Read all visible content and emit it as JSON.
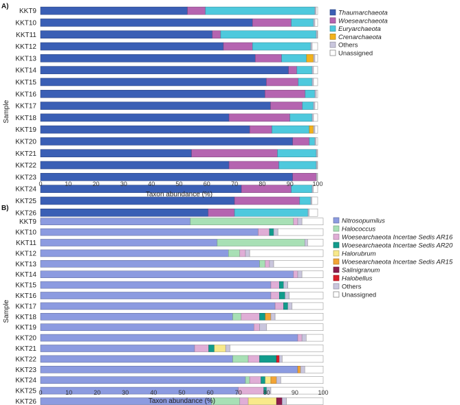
{
  "chart_data": [
    {
      "panel_label": "A)",
      "type": "bar",
      "orientation": "horizontal",
      "stacked": true,
      "xlabel": "Taxon abundance (%)",
      "ylabel": "Sample",
      "xlim": [
        0,
        100
      ],
      "xticks": [
        "0",
        "10",
        "20",
        "30",
        "40",
        "50",
        "60",
        "70",
        "80",
        "90",
        "100"
      ],
      "legend_position": "right",
      "categories": [
        "KKT9",
        "KKT10",
        "KKT11",
        "KKT12",
        "KKT13",
        "KKT14",
        "KKT15",
        "KKT16",
        "KKT17",
        "KKT18",
        "KKT19",
        "KKT20",
        "KKT21",
        "KKT22",
        "KKT23",
        "KKT24",
        "KKT25",
        "KKT26"
      ],
      "series": [
        {
          "name": "Thaumarchaeota",
          "italic": true,
          "color": "#3a5fb5",
          "values": [
            53,
            76.5,
            62,
            66,
            77.5,
            89.5,
            81.5,
            81,
            83,
            68,
            75.5,
            91,
            54.5,
            68,
            91,
            72.5,
            70,
            60.5
          ]
        },
        {
          "name": "Woesearchaeota",
          "italic": true,
          "color": "#b564b0",
          "values": [
            6.5,
            14,
            3,
            10.5,
            9.5,
            3,
            11.5,
            14.5,
            11.5,
            22,
            8,
            6,
            31,
            18,
            8.5,
            18,
            23.5,
            9.5
          ]
        },
        {
          "name": "Euryarchaeota",
          "italic": true,
          "color": "#4ec9dd",
          "values": [
            39.5,
            8,
            34.5,
            21,
            9,
            5.5,
            5,
            3.5,
            4,
            8,
            13.5,
            2,
            14,
            13.5,
            0,
            7.5,
            4,
            26.5
          ]
        },
        {
          "name": "Crenarchaeota",
          "italic": true,
          "color": "#f2b21c",
          "values": [
            0,
            0,
            0,
            0,
            2.5,
            0,
            0,
            0,
            0,
            0,
            1.5,
            0,
            0,
            0,
            0,
            0,
            0,
            0
          ]
        },
        {
          "name": "Others",
          "italic": false,
          "color": "#c9c6dd",
          "values": [
            0.4,
            0.5,
            0.4,
            0.5,
            0.5,
            0.5,
            0.5,
            0.5,
            0.5,
            0.5,
            0.5,
            0.4,
            0.3,
            0.3,
            0.3,
            0.4,
            0.4,
            0.4
          ]
        },
        {
          "name": "Unassigned",
          "italic": false,
          "color": "#ffffff",
          "values": [
            0.6,
            1,
            0.1,
            2,
            1,
            1.5,
            1.5,
            0.5,
            1,
            1.5,
            1,
            0.6,
            0.2,
            0.2,
            0.2,
            1.6,
            2.1,
            3.1
          ]
        }
      ]
    },
    {
      "panel_label": "B)",
      "type": "bar",
      "orientation": "horizontal",
      "stacked": true,
      "xlabel": "Taxon abundance (%)",
      "ylabel": "Sample",
      "xlim": [
        0,
        100
      ],
      "xticks": [
        "0",
        "10",
        "20",
        "30",
        "40",
        "50",
        "60",
        "70",
        "80",
        "90",
        "100"
      ],
      "legend_position": "right",
      "categories": [
        "KKT9",
        "KKT10",
        "KKT11",
        "KKT12",
        "KKT13",
        "KKT14",
        "KKT15",
        "KKT16",
        "KKT17",
        "KKT18",
        "KKT19",
        "KKT20",
        "KKT21",
        "KKT22",
        "KKT23",
        "KKT24",
        "KKT25",
        "KKT26"
      ],
      "series": [
        {
          "name": "Nitrosopumilus",
          "italic": true,
          "color": "#8c9be0",
          "values": [
            53,
            77,
            62.5,
            66.5,
            77.5,
            89.5,
            81.5,
            81.5,
            83,
            68,
            75.5,
            91,
            54.5,
            68,
            91,
            72.5,
            70,
            60.5
          ]
        },
        {
          "name": "Halococcus",
          "italic": true,
          "color": "#a8e0b5",
          "values": [
            36.5,
            0,
            31,
            4,
            2,
            0,
            0,
            0,
            0,
            3,
            0,
            0,
            0,
            5.5,
            0,
            1.5,
            0,
            10
          ]
        },
        {
          "name": "Woesearchaeota Incertae Sedis AR16",
          "italic": true,
          "color": "#e0aed6",
          "values": [
            1.5,
            4,
            0,
            2,
            1.5,
            1.5,
            3,
            3,
            3,
            6.5,
            2,
            1.5,
            5,
            4,
            0,
            4,
            9,
            3
          ]
        },
        {
          "name": "Woesearchaeota Incertae Sedis AR20",
          "italic": true,
          "color": "#119c8c",
          "values": [
            0,
            1.5,
            0,
            0,
            0,
            0,
            1.5,
            2,
            1.5,
            2,
            0,
            0,
            2,
            6,
            0,
            1.5,
            1,
            0
          ]
        },
        {
          "name": "Halorubrum",
          "italic": true,
          "color": "#f8e98a",
          "values": [
            0,
            0,
            0,
            0,
            0,
            0,
            0,
            0,
            0,
            0,
            0,
            0,
            4,
            0,
            0,
            2,
            0,
            10
          ]
        },
        {
          "name": "Woesearchaeota Incertae Sedis AR15",
          "italic": true,
          "color": "#f2a436",
          "values": [
            0,
            0,
            0,
            0,
            0,
            0,
            0,
            0,
            0,
            2,
            0,
            0,
            0,
            0,
            1,
            2,
            0,
            0
          ]
        },
        {
          "name": "Salinigranum",
          "italic": true,
          "color": "#8c1c4c",
          "values": [
            0,
            0,
            0,
            0,
            0,
            0,
            0,
            0,
            0,
            0,
            0,
            0,
            0,
            0,
            0,
            0,
            0,
            2
          ]
        },
        {
          "name": "Halobellus",
          "italic": true,
          "color": "#d81e2a",
          "values": [
            0,
            0,
            0,
            0,
            0,
            0,
            0,
            0,
            0,
            0,
            0,
            0,
            0,
            1,
            0,
            0,
            0,
            0
          ]
        },
        {
          "name": "Others",
          "italic": false,
          "color": "#c9c6dd",
          "values": [
            1.5,
            1.5,
            1,
            1.5,
            1.5,
            1.5,
            1.5,
            1.5,
            1.5,
            1.5,
            2.5,
            1.5,
            1.5,
            1,
            1.5,
            1.5,
            1.5,
            1.5
          ]
        },
        {
          "name": "Unassigned",
          "italic": false,
          "color": "#ffffff",
          "values": [
            7.5,
            16,
            5.5,
            26,
            17.5,
            7.5,
            12.5,
            12,
            11,
            17,
            20,
            6,
            33,
            14.5,
            6.5,
            15,
            18.5,
            13
          ]
        }
      ]
    }
  ]
}
